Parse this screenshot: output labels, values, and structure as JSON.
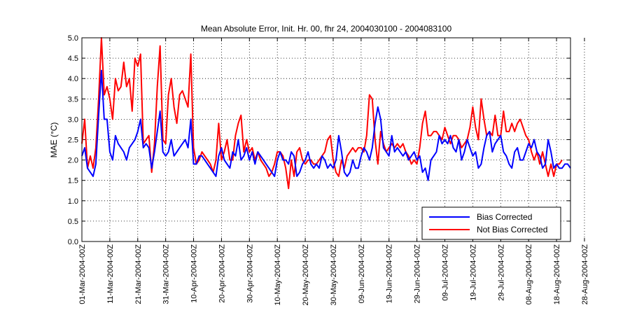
{
  "chart_data": {
    "type": "line",
    "title": "Mean Absolute Error, Init. Hr. 00, fhr 24, 2004030100 - 2004083100",
    "xlabel": "",
    "ylabel": "MAE (°C)",
    "ylim": [
      0,
      5
    ],
    "yticks": [
      "0.0",
      "0.5",
      "1.0",
      "1.5",
      "2.0",
      "2.5",
      "3.0",
      "3.5",
      "4.0",
      "4.5",
      "5.0"
    ],
    "grid": true,
    "legend_position": "bottom-right",
    "x_tick_labels": [
      "01-Mar-2004-00Z",
      "11-Mar-2004-00Z",
      "21-Mar-2004-00Z",
      "31-Mar-2004-00Z",
      "10-Apr-2004-00Z",
      "20-Apr-2004-00Z",
      "30-Apr-2004-00Z",
      "10-May-2004-00Z",
      "20-May-2004-00Z",
      "30-May-2004-00Z",
      "09-Jun-2004-00Z",
      "19-Jun-2004-00Z",
      "29-Jun-2004-00Z",
      "09-Jul-2004-00Z",
      "19-Jul-2004-00Z",
      "29-Jul-2004-00Z",
      "08-Aug-2004-00Z",
      "18-Aug-2004-00Z",
      "28-Aug-2004-00Z"
    ],
    "x_start": "01-Mar-2004-00Z",
    "x_end": "31-Aug-2004-00Z",
    "series": [
      {
        "name": "Bias Corrected",
        "color": "#0000ff",
        "values": [
          2.1,
          2.3,
          1.8,
          1.7,
          1.6,
          1.9,
          3.1,
          4.2,
          3.0,
          3.0,
          2.2,
          2.0,
          2.6,
          2.4,
          2.3,
          2.2,
          2.0,
          2.3,
          2.4,
          2.5,
          2.7,
          3.0,
          2.3,
          2.4,
          2.3,
          1.8,
          2.2,
          2.7,
          3.2,
          2.2,
          2.1,
          2.2,
          2.5,
          2.1,
          2.2,
          2.3,
          2.4,
          2.5,
          2.3,
          3.0,
          1.9,
          1.9,
          2.1,
          2.1,
          2.0,
          1.9,
          1.8,
          1.7,
          1.6,
          2.1,
          2.3,
          2.0,
          1.9,
          1.8,
          2.2,
          2.1,
          2.5,
          2.0,
          2.1,
          2.3,
          2.0,
          2.2,
          1.9,
          2.2,
          2.1,
          2.0,
          1.9,
          1.8,
          1.7,
          1.6,
          2.0,
          2.2,
          2.0,
          2.0,
          1.9,
          2.2,
          2.1,
          1.6,
          1.7,
          1.9,
          2.0,
          2.2,
          1.9,
          1.8,
          1.9,
          1.8,
          2.1,
          2.0,
          1.8,
          1.9,
          1.8,
          2.0,
          2.6,
          2.2,
          1.7,
          1.6,
          1.7,
          2.0,
          1.8,
          1.8,
          2.1,
          2.3,
          2.2,
          2.0,
          2.3,
          2.9,
          3.3,
          3.0,
          2.3,
          2.2,
          2.1,
          2.6,
          2.2,
          2.3,
          2.2,
          2.1,
          2.2,
          2.0,
          2.1,
          2.2,
          2.0,
          2.1,
          1.7,
          1.8,
          1.5,
          2.0,
          2.1,
          2.2,
          2.6,
          2.4,
          2.5,
          2.4,
          2.6,
          2.3,
          2.2,
          2.5,
          2.0,
          2.2,
          2.5,
          2.3,
          2.1,
          2.2,
          1.8,
          1.9,
          2.3,
          2.6,
          2.7,
          2.2,
          2.4,
          2.5,
          2.6,
          2.2,
          2.1,
          1.9,
          1.8,
          2.2,
          2.3,
          2.0,
          2.0,
          2.2,
          2.4,
          2.3,
          2.5,
          2.2,
          2.1,
          1.8,
          1.9,
          2.5,
          2.2,
          1.8,
          1.9,
          1.8,
          1.8,
          1.9,
          1.9,
          1.8
        ]
      },
      {
        "name": "Not Bias Corrected",
        "color": "#ff0000",
        "values": [
          2.4,
          3.0,
          1.8,
          2.1,
          1.8,
          2.3,
          3.5,
          5.0,
          3.6,
          3.8,
          3.5,
          3.0,
          4.0,
          3.7,
          3.8,
          4.4,
          3.8,
          4.0,
          3.2,
          4.5,
          4.3,
          4.6,
          2.4,
          2.5,
          2.6,
          1.7,
          2.4,
          3.8,
          4.8,
          2.5,
          2.4,
          3.6,
          4.0,
          3.3,
          2.9,
          3.6,
          3.7,
          3.5,
          3.3,
          4.6,
          2.3,
          1.9,
          2.0,
          2.2,
          2.1,
          2.0,
          1.9,
          1.7,
          2.0,
          2.9,
          2.0,
          2.2,
          2.5,
          2.0,
          2.0,
          2.6,
          2.9,
          3.1,
          2.2,
          2.5,
          2.2,
          2.3,
          2.0,
          2.2,
          2.0,
          1.9,
          1.8,
          1.6,
          1.7,
          1.9,
          2.2,
          2.2,
          2.1,
          1.8,
          1.3,
          2.0,
          1.6,
          2.2,
          2.3,
          2.0,
          1.9,
          2.0,
          2.0,
          1.9,
          1.9,
          2.0,
          2.1,
          2.2,
          2.5,
          2.6,
          2.0,
          1.7,
          1.6,
          2.0,
          1.8,
          2.1,
          2.2,
          2.3,
          2.2,
          2.3,
          2.3,
          2.2,
          2.6,
          3.6,
          3.5,
          2.5,
          1.9,
          2.7,
          2.4,
          2.2,
          2.3,
          2.4,
          2.3,
          2.4,
          2.3,
          2.4,
          2.2,
          2.1,
          1.9,
          2.0,
          1.9,
          2.3,
          2.9,
          3.2,
          2.6,
          2.6,
          2.7,
          2.7,
          2.6,
          2.5,
          2.8,
          2.6,
          2.4,
          2.6,
          2.6,
          2.5,
          2.3,
          2.4,
          2.5,
          2.8,
          3.3,
          2.8,
          2.5,
          3.5,
          3.0,
          2.6,
          2.7,
          2.6,
          3.1,
          2.6,
          2.6,
          3.2,
          2.7,
          2.7,
          2.9,
          2.7,
          2.9,
          3.0,
          2.8,
          2.6,
          2.5,
          2.2,
          2.0,
          2.2,
          1.9,
          2.2,
          1.9,
          1.6,
          1.9,
          1.6,
          1.9,
          1.9,
          2.0
        ]
      }
    ]
  }
}
